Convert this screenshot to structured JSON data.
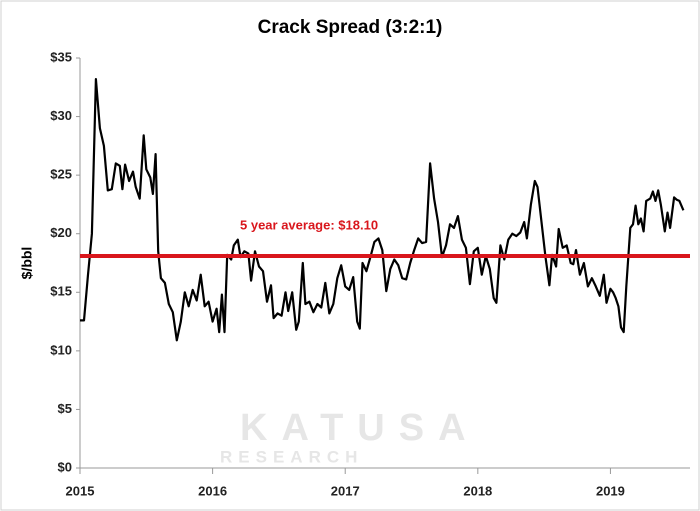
{
  "chart_data": {
    "type": "line",
    "title": "Crack Spread (3:2:1)",
    "y_label": "$/bbl",
    "watermark": "KATUSA",
    "watermark_sub": "RESEARCH",
    "average": 18.1,
    "average_label": "5 year average: $18.10",
    "average_color": "#d9161c",
    "xlim": [
      2015,
      2019.6
    ],
    "xticks": [
      2015,
      2016,
      2017,
      2018,
      2019
    ],
    "ylim": [
      0,
      35
    ],
    "yticks": [
      {
        "value": 0,
        "label": "$0"
      },
      {
        "value": 5,
        "label": "$5"
      },
      {
        "value": 10,
        "label": "$10"
      },
      {
        "value": 15,
        "label": "$15"
      },
      {
        "value": 20,
        "label": "$20"
      },
      {
        "value": 25,
        "label": "$25"
      },
      {
        "value": 30,
        "label": "$30"
      },
      {
        "value": 35,
        "label": "$35"
      }
    ],
    "grid": false,
    "series": [
      {
        "color": "#000000",
        "x": [
          2015.0,
          2015.03,
          2015.06,
          2015.09,
          2015.12,
          2015.15,
          2015.18,
          2015.21,
          2015.24,
          2015.27,
          2015.3,
          2015.32,
          2015.34,
          2015.37,
          2015.4,
          2015.42,
          2015.45,
          2015.48,
          2015.5,
          2015.53,
          2015.55,
          2015.57,
          2015.59,
          2015.61,
          2015.64,
          2015.67,
          2015.7,
          2015.73,
          2015.76,
          2015.79,
          2015.82,
          2015.85,
          2015.88,
          2015.91,
          2015.94,
          2015.97,
          2016.0,
          2016.03,
          2016.05,
          2016.07,
          2016.09,
          2016.11,
          2016.14,
          2016.16,
          2016.19,
          2016.21,
          2016.24,
          2016.27,
          2016.29,
          2016.32,
          2016.35,
          2016.38,
          2016.41,
          2016.44,
          2016.46,
          2016.49,
          2016.52,
          2016.55,
          2016.57,
          2016.6,
          2016.63,
          2016.65,
          2016.68,
          2016.7,
          2016.73,
          2016.76,
          2016.79,
          2016.82,
          2016.85,
          2016.88,
          2016.91,
          2016.94,
          2016.97,
          2017.0,
          2017.03,
          2017.06,
          2017.09,
          2017.11,
          2017.13,
          2017.16,
          2017.19,
          2017.22,
          2017.25,
          2017.28,
          2017.31,
          2017.34,
          2017.37,
          2017.4,
          2017.43,
          2017.46,
          2017.49,
          2017.52,
          2017.55,
          2017.58,
          2017.61,
          2017.64,
          2017.67,
          2017.7,
          2017.73,
          2017.76,
          2017.79,
          2017.82,
          2017.85,
          2017.88,
          2017.91,
          2017.94,
          2017.97,
          2018.0,
          2018.03,
          2018.06,
          2018.09,
          2018.12,
          2018.14,
          2018.17,
          2018.2,
          2018.23,
          2018.26,
          2018.29,
          2018.32,
          2018.35,
          2018.37,
          2018.4,
          2018.43,
          2018.45,
          2018.48,
          2018.51,
          2018.54,
          2018.56,
          2018.59,
          2018.61,
          2018.64,
          2018.67,
          2018.7,
          2018.72,
          2018.74,
          2018.77,
          2018.8,
          2018.83,
          2018.86,
          2018.89,
          2018.92,
          2018.95,
          2018.97,
          2019.0,
          2019.02,
          2019.04,
          2019.06,
          2019.08,
          2019.1,
          2019.12,
          2019.15,
          2019.17,
          2019.19,
          2019.21,
          2019.23,
          2019.25,
          2019.27,
          2019.3,
          2019.32,
          2019.34,
          2019.36,
          2019.38,
          2019.41,
          2019.43,
          2019.45,
          2019.48,
          2019.5,
          2019.52,
          2019.55
        ],
        "values": [
          12.6,
          12.6,
          16.5,
          20,
          33.2,
          29,
          27.5,
          23.7,
          23.8,
          26,
          25.8,
          23.8,
          25.9,
          24.5,
          25.3,
          24,
          23,
          28.4,
          25.5,
          24.8,
          23.4,
          26.8,
          18.5,
          16.2,
          15.8,
          14,
          13.3,
          10.9,
          12.5,
          15,
          13.8,
          15.2,
          14.3,
          16.5,
          13.8,
          14.2,
          12.5,
          13.6,
          11.6,
          14.8,
          11.6,
          18.2,
          17.8,
          19,
          19.5,
          18,
          18.5,
          18.3,
          16,
          18.5,
          17.2,
          16.8,
          14.2,
          15.6,
          12.8,
          13.2,
          13,
          15,
          13.4,
          15,
          11.8,
          12.5,
          17.5,
          14,
          14.2,
          13.3,
          14,
          13.7,
          15.8,
          13.2,
          14,
          16.2,
          17.3,
          15.5,
          15.2,
          16.3,
          12.5,
          11.9,
          17.5,
          16.8,
          18,
          19.3,
          19.6,
          18.6,
          15.1,
          17,
          17.8,
          17.3,
          16.2,
          16.1,
          17.5,
          18.6,
          19.6,
          19.2,
          19.3,
          26,
          23,
          21,
          18,
          19,
          20.8,
          20.5,
          21.5,
          19.5,
          18.8,
          15.7,
          18.5,
          18.8,
          16.5,
          18.1,
          17,
          14.5,
          14.1,
          19,
          17.8,
          19.5,
          20,
          19.8,
          20.1,
          21,
          19.6,
          22.5,
          24.5,
          24,
          21,
          18,
          15.6,
          18.2,
          17.2,
          20.4,
          18.8,
          19,
          17.5,
          17.4,
          18.6,
          16.5,
          17.5,
          15.5,
          16.2,
          15.5,
          14.7,
          16.5,
          14.1,
          15.3,
          15,
          14.5,
          13.8,
          12,
          11.6,
          15.5,
          20.5,
          20.8,
          22.4,
          20.8,
          21.3,
          20.2,
          22.8,
          23,
          23.6,
          22.8,
          23.7,
          22.5,
          20.2,
          21.8,
          20.5,
          23.1,
          22.9,
          22.8,
          22
        ]
      }
    ]
  }
}
